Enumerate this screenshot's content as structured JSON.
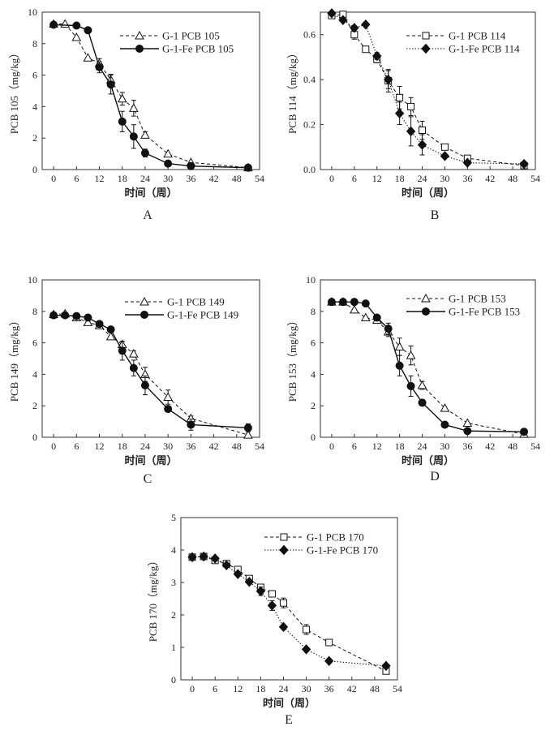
{
  "chart_data": [
    {
      "id": "A",
      "type": "line",
      "panel_label": "A",
      "xlabel": "时间（周）",
      "ylabel": "PCB 105（mg/kg）",
      "xlim": [
        -3,
        54
      ],
      "ylim": [
        0,
        10
      ],
      "xticks": [
        0,
        6,
        12,
        18,
        24,
        30,
        36,
        42,
        48,
        54
      ],
      "yticks": [
        0,
        2,
        4,
        6,
        8,
        10
      ],
      "legend": "top-right",
      "series": [
        {
          "name": "G-1 PCB 105",
          "marker": "triangle-open",
          "line": "dashed",
          "x": [
            0,
            3,
            6,
            9,
            12,
            15,
            18,
            21,
            24,
            30,
            36,
            51
          ],
          "y": [
            9.25,
            9.25,
            8.4,
            7.1,
            6.75,
            5.7,
            4.5,
            3.9,
            2.2,
            1.0,
            0.45,
            0.12
          ],
          "err": [
            0,
            0,
            0,
            0,
            0.3,
            0.35,
            0.4,
            0.5,
            0.2,
            0,
            0,
            0
          ]
        },
        {
          "name": "G-1-Fe PCB 105",
          "marker": "circle-filled",
          "line": "solid",
          "x": [
            0,
            6,
            9,
            12,
            15,
            18,
            21,
            24,
            30,
            36,
            51
          ],
          "y": [
            9.2,
            9.15,
            8.85,
            6.5,
            5.4,
            3.05,
            2.1,
            1.05,
            0.38,
            0.22,
            0.12
          ],
          "err": [
            0,
            0,
            0,
            0.35,
            0.6,
            0.65,
            0.75,
            0.25,
            0,
            0,
            0
          ]
        }
      ]
    },
    {
      "id": "B",
      "type": "line",
      "panel_label": "B",
      "xlabel": "时间（周）",
      "ylabel": "PCB 114（mg/kg）",
      "xlim": [
        -3,
        54
      ],
      "ylim": [
        0,
        0.7
      ],
      "xticks": [
        0,
        6,
        12,
        18,
        24,
        30,
        36,
        42,
        48,
        54
      ],
      "yticks": [
        0.0,
        0.2,
        0.4,
        0.6
      ],
      "ytick_format": 1,
      "legend": "top-right",
      "series": [
        {
          "name": "G-1 PCB 114",
          "marker": "square-open",
          "line": "dashed",
          "x": [
            0,
            3,
            6,
            9,
            12,
            15,
            18,
            21,
            24,
            30,
            36,
            51
          ],
          "y": [
            0.685,
            0.69,
            0.6,
            0.535,
            0.49,
            0.395,
            0.32,
            0.28,
            0.175,
            0.1,
            0.05,
            0.018
          ],
          "err": [
            0,
            0,
            0.02,
            0,
            0.015,
            0.05,
            0.05,
            0.04,
            0.04,
            0.01,
            0,
            0
          ]
        },
        {
          "name": "G-1-Fe PCB 114",
          "marker": "diamond-filled",
          "line": "dotted",
          "x": [
            0,
            3,
            6,
            9,
            12,
            15,
            18,
            21,
            24,
            30,
            36,
            51
          ],
          "y": [
            0.695,
            0.665,
            0.63,
            0.645,
            0.505,
            0.4,
            0.25,
            0.17,
            0.11,
            0.06,
            0.03,
            0.025
          ],
          "err": [
            0,
            0,
            0,
            0,
            0.015,
            0.04,
            0.05,
            0.065,
            0.045,
            0,
            0,
            0
          ]
        }
      ]
    },
    {
      "id": "C",
      "type": "line",
      "panel_label": "C",
      "xlabel": "时间（周）",
      "ylabel": "PCB 149（mg/kg）",
      "xlim": [
        -3,
        54
      ],
      "ylim": [
        0,
        10
      ],
      "xticks": [
        0,
        6,
        12,
        18,
        24,
        30,
        36,
        42,
        48,
        54
      ],
      "yticks": [
        0,
        2,
        4,
        6,
        8,
        10
      ],
      "legend": "top-right",
      "series": [
        {
          "name": "G-1 PCB 149",
          "marker": "triangle-open",
          "line": "dashed",
          "x": [
            0,
            3,
            6,
            9,
            12,
            15,
            18,
            21,
            24,
            30,
            36,
            51
          ],
          "y": [
            7.8,
            7.85,
            7.6,
            7.3,
            7.1,
            6.4,
            5.9,
            5.3,
            4.0,
            2.55,
            1.2,
            0.15
          ],
          "err": [
            0,
            0,
            0,
            0,
            0,
            0,
            0.2,
            0.2,
            0.45,
            0.45,
            0.15,
            0
          ]
        },
        {
          "name": "G-1-Fe PCB 149",
          "marker": "circle-filled",
          "line": "solid",
          "x": [
            0,
            3,
            6,
            9,
            12,
            15,
            18,
            21,
            24,
            30,
            36,
            51
          ],
          "y": [
            7.75,
            7.75,
            7.7,
            7.6,
            7.2,
            6.85,
            5.5,
            4.4,
            3.3,
            1.8,
            0.8,
            0.6
          ],
          "err": [
            0,
            0,
            0,
            0,
            0,
            0,
            0.6,
            0.5,
            0.6,
            0.15,
            0.35,
            0.25
          ]
        }
      ]
    },
    {
      "id": "D",
      "type": "line",
      "panel_label": "D",
      "xlabel": "时间（周）",
      "ylabel": "PCB 153（mg/kg）",
      "xlim": [
        -3,
        54
      ],
      "ylim": [
        0,
        10
      ],
      "xticks": [
        0,
        6,
        12,
        18,
        24,
        30,
        36,
        42,
        48,
        54
      ],
      "yticks": [
        0,
        2,
        4,
        6,
        8,
        10
      ],
      "legend": "top-right",
      "series": [
        {
          "name": "G-1 PCB 153",
          "marker": "triangle-open",
          "line": "dashed",
          "x": [
            0,
            3,
            6,
            9,
            12,
            15,
            18,
            21,
            24,
            30,
            36,
            51
          ],
          "y": [
            8.6,
            8.6,
            8.1,
            7.6,
            7.45,
            6.7,
            5.75,
            5.2,
            3.3,
            1.85,
            0.9,
            0.2
          ],
          "err": [
            0,
            0,
            0,
            0,
            0,
            0.3,
            0.55,
            0.6,
            0.25,
            0,
            0,
            0
          ]
        },
        {
          "name": "G-1-Fe PCB 153",
          "marker": "circle-filled",
          "line": "solid",
          "x": [
            0,
            3,
            6,
            9,
            12,
            15,
            18,
            21,
            24,
            30,
            36,
            51
          ],
          "y": [
            8.6,
            8.6,
            8.6,
            8.5,
            7.6,
            6.9,
            4.55,
            3.25,
            2.2,
            0.8,
            0.4,
            0.35
          ],
          "err": [
            0,
            0,
            0,
            0,
            0,
            0.35,
            0.65,
            0.65,
            0.2,
            0,
            0,
            0
          ]
        }
      ]
    },
    {
      "id": "E",
      "type": "line",
      "panel_label": "E",
      "xlabel": "时间（周）",
      "ylabel": "PCB 170（mg/kg）",
      "xlim": [
        -3,
        54
      ],
      "ylim": [
        0,
        5
      ],
      "xticks": [
        0,
        6,
        12,
        18,
        24,
        30,
        36,
        42,
        48,
        54
      ],
      "yticks": [
        0,
        1,
        2,
        3,
        4,
        5
      ],
      "legend": "top-right",
      "series": [
        {
          "name": "G-1 PCB 170",
          "marker": "square-open",
          "line": "dashed",
          "x": [
            0,
            3,
            6,
            9,
            12,
            15,
            18,
            21,
            24,
            30,
            36,
            51
          ],
          "y": [
            3.78,
            3.8,
            3.68,
            3.58,
            3.4,
            3.12,
            2.85,
            2.65,
            2.37,
            1.55,
            1.15,
            0.27
          ],
          "err": [
            0,
            0,
            0,
            0,
            0.05,
            0,
            0,
            0,
            0.15,
            0.15,
            0,
            0
          ]
        },
        {
          "name": "G-1-Fe PCB 170",
          "marker": "diamond-filled",
          "line": "dotted",
          "x": [
            0,
            3,
            6,
            9,
            12,
            15,
            18,
            21,
            24,
            30,
            36,
            51
          ],
          "y": [
            3.78,
            3.8,
            3.74,
            3.53,
            3.26,
            3.02,
            2.73,
            2.29,
            1.63,
            0.94,
            0.58,
            0.43
          ],
          "err": [
            0,
            0,
            0,
            0,
            0,
            0,
            0.13,
            0.15,
            0,
            0,
            0,
            0
          ]
        }
      ]
    }
  ]
}
